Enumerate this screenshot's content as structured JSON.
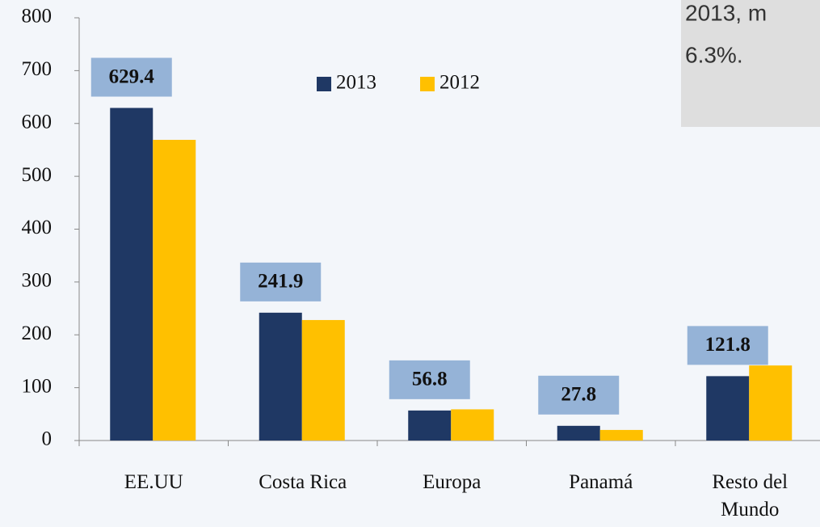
{
  "chart_data": {
    "type": "bar",
    "categories": [
      "EE.UU",
      "Costa Rica",
      "Europa",
      "Panamá",
      "Resto del Mundo"
    ],
    "series": [
      {
        "name": "2013",
        "color": "#1f3864",
        "values": [
          629.4,
          241.9,
          56.8,
          27.8,
          121.8
        ]
      },
      {
        "name": "2012",
        "color": "#ffc000",
        "values": [
          569,
          228,
          59,
          20,
          142
        ]
      }
    ],
    "data_label_series": 0,
    "ylim": [
      0,
      800
    ],
    "yticks": [
      0,
      100,
      200,
      300,
      400,
      500,
      600,
      700,
      800
    ],
    "annotation": [
      "2013, m",
      "6.3%."
    ]
  }
}
